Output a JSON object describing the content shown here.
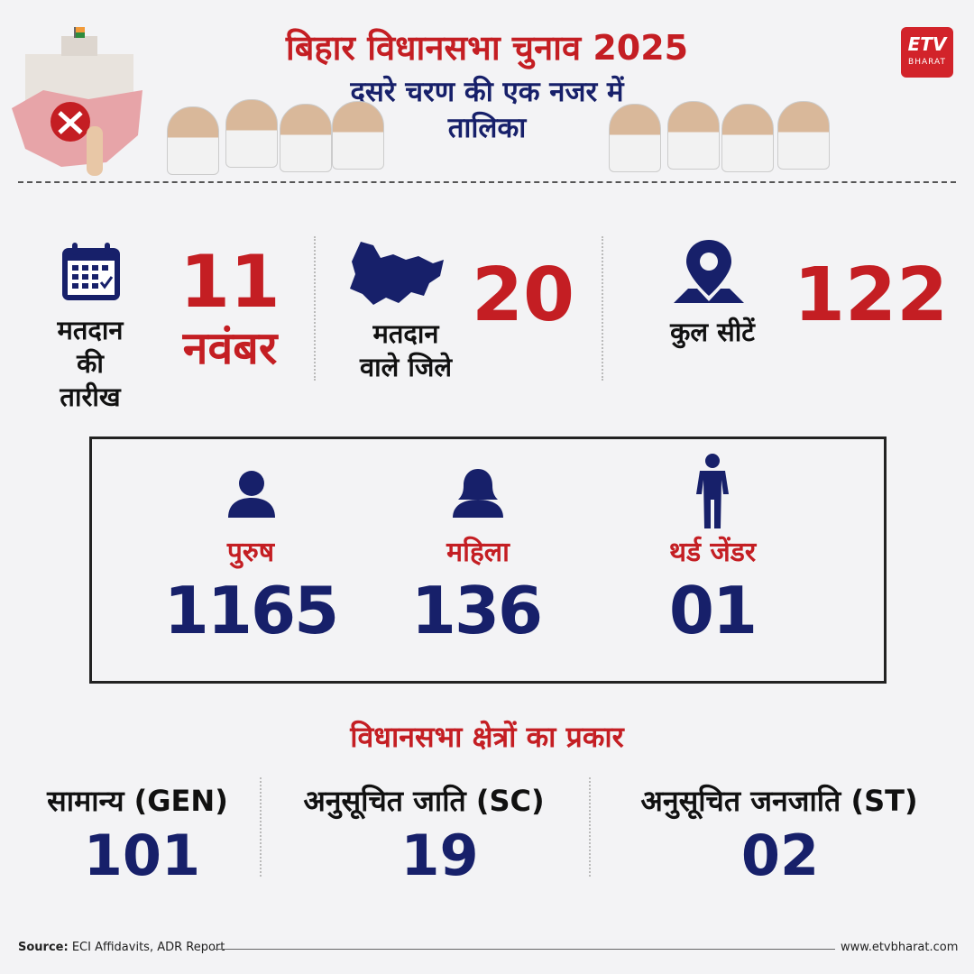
{
  "header": {
    "title": "बिहार विधानसभा चुनाव 2025",
    "subtitle_line1": "दूसरे चरण की एक नजर में",
    "subtitle_line2": "तालिका",
    "logo_text": "ETV",
    "logo_sub": "BHARAT"
  },
  "stats": {
    "date_label_1": "मतदान",
    "date_label_2": "की",
    "date_label_3": "तारीख",
    "date_value_1": "11",
    "date_value_2": "नवंबर",
    "districts_label_1": "मतदान",
    "districts_label_2": "वाले जिले",
    "districts_value": "20",
    "seats_label": "कुल सीटें",
    "seats_value": "122"
  },
  "candidates": {
    "male_label": "पुरुष",
    "male_value": "1165",
    "female_label": "महिला",
    "female_value": "136",
    "third_label": "थर्ड जेंडर",
    "third_value": "01"
  },
  "constituencies": {
    "heading": "विधानसभा क्षेत्रों का प्रकार",
    "gen_label": "सामान्य (GEN)",
    "gen_value": "101",
    "sc_label": "अनुसूचित जाति (SC)",
    "sc_value": "19",
    "st_label": "अनुसूचित जनजाति (ST)",
    "st_value": "02"
  },
  "footer": {
    "source_label": "Source:",
    "source_text": "ECI Affidavits, ADR Report",
    "website": "www.etvbharat.com"
  },
  "colors": {
    "red": "#c41e23",
    "navy": "#17206a",
    "background": "#f3f3f5"
  }
}
